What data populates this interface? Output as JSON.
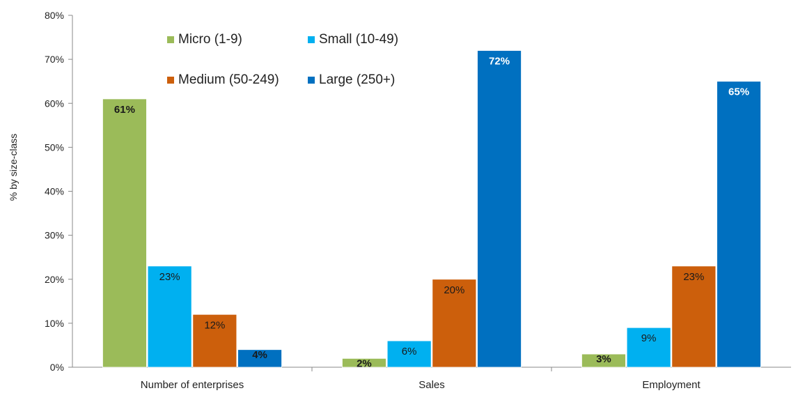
{
  "chart_data": {
    "type": "bar",
    "ylabel": "% by size-class",
    "xlabel": "",
    "ylim": [
      0,
      80
    ],
    "yticks": [
      "0%",
      "10%",
      "20%",
      "30%",
      "40%",
      "50%",
      "60%",
      "70%",
      "80%"
    ],
    "categories": [
      "Number of enterprises",
      "Sales",
      "Employment"
    ],
    "series": [
      {
        "name": "Micro (1-9)",
        "color": "#9bbb59",
        "values": [
          61,
          2,
          3
        ],
        "labels": [
          "61%",
          "2%",
          "3%"
        ]
      },
      {
        "name": "Small (10-49)",
        "color": "#00b0f0",
        "values": [
          23,
          6,
          9
        ],
        "labels": [
          "23%",
          "6%",
          "9%"
        ]
      },
      {
        "name": "Medium (50-249)",
        "color": "#cc5f0c",
        "values": [
          12,
          20,
          23
        ],
        "labels": [
          "12%",
          "20%",
          "23%"
        ]
      },
      {
        "name": "Large (250+)",
        "color": "#0070c0",
        "values": [
          4,
          72,
          65
        ],
        "labels": [
          "4%",
          "72%",
          "65%"
        ]
      }
    ],
    "legend_position": "top-left",
    "grid": false
  }
}
